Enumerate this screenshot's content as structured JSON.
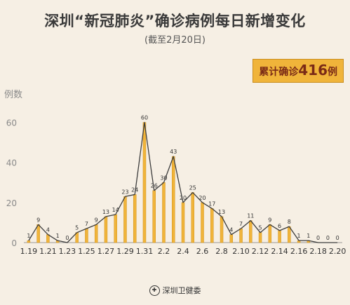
{
  "header": {
    "title": "深圳“新冠肺炎”确诊病例每日新增变化",
    "subtitle": "(截至2月20日)"
  },
  "badge": {
    "label": "累计确诊",
    "value": "416",
    "unit": "例"
  },
  "footer": {
    "source": "深圳卫健委",
    "logo_icon": "health-commission-logo-icon"
  },
  "colors": {
    "background": "#f6efe4",
    "bar": "#f0b43a",
    "bar_edge": "#d4951f",
    "line": "#3d3d3d",
    "badge": "#f0b43a",
    "badge_text": "#7a2a16"
  },
  "chart_data": {
    "type": "bar",
    "title": "",
    "xlabel": "",
    "ylabel": "例数",
    "ylim": [
      0,
      70
    ],
    "yticks": [
      0,
      20,
      40,
      60
    ],
    "grid": false,
    "overlay_line": true,
    "categories": [
      "1.19",
      "1.20",
      "1.21",
      "1.22",
      "1.23",
      "1.24",
      "1.25",
      "1.26",
      "1.27",
      "1.28",
      "1.29",
      "1.30",
      "1.31",
      "2.1",
      "2.2",
      "2.3",
      "2.4",
      "2.5",
      "2.6",
      "2.7",
      "2.8",
      "2.9",
      "2.10",
      "2.11",
      "2.12",
      "2.13",
      "2.14",
      "2.15",
      "2.16",
      "2.17",
      "2.18",
      "2.19",
      "2.20"
    ],
    "values": [
      1,
      9,
      4,
      1,
      0,
      5,
      7,
      9,
      13,
      14,
      23,
      24,
      60,
      26,
      30,
      43,
      20,
      25,
      20,
      17,
      13,
      4,
      7,
      11,
      5,
      9,
      6,
      8,
      1,
      1,
      0,
      0,
      0
    ],
    "tick_labels": [
      "1.19",
      "1.21",
      "1.23",
      "1.25",
      "1.27",
      "1.29",
      "1.31",
      "2.2",
      "2.4",
      "2.6",
      "2.8",
      "2.10",
      "2.12",
      "2.14",
      "2.16",
      "2.18",
      "2.20"
    ]
  }
}
